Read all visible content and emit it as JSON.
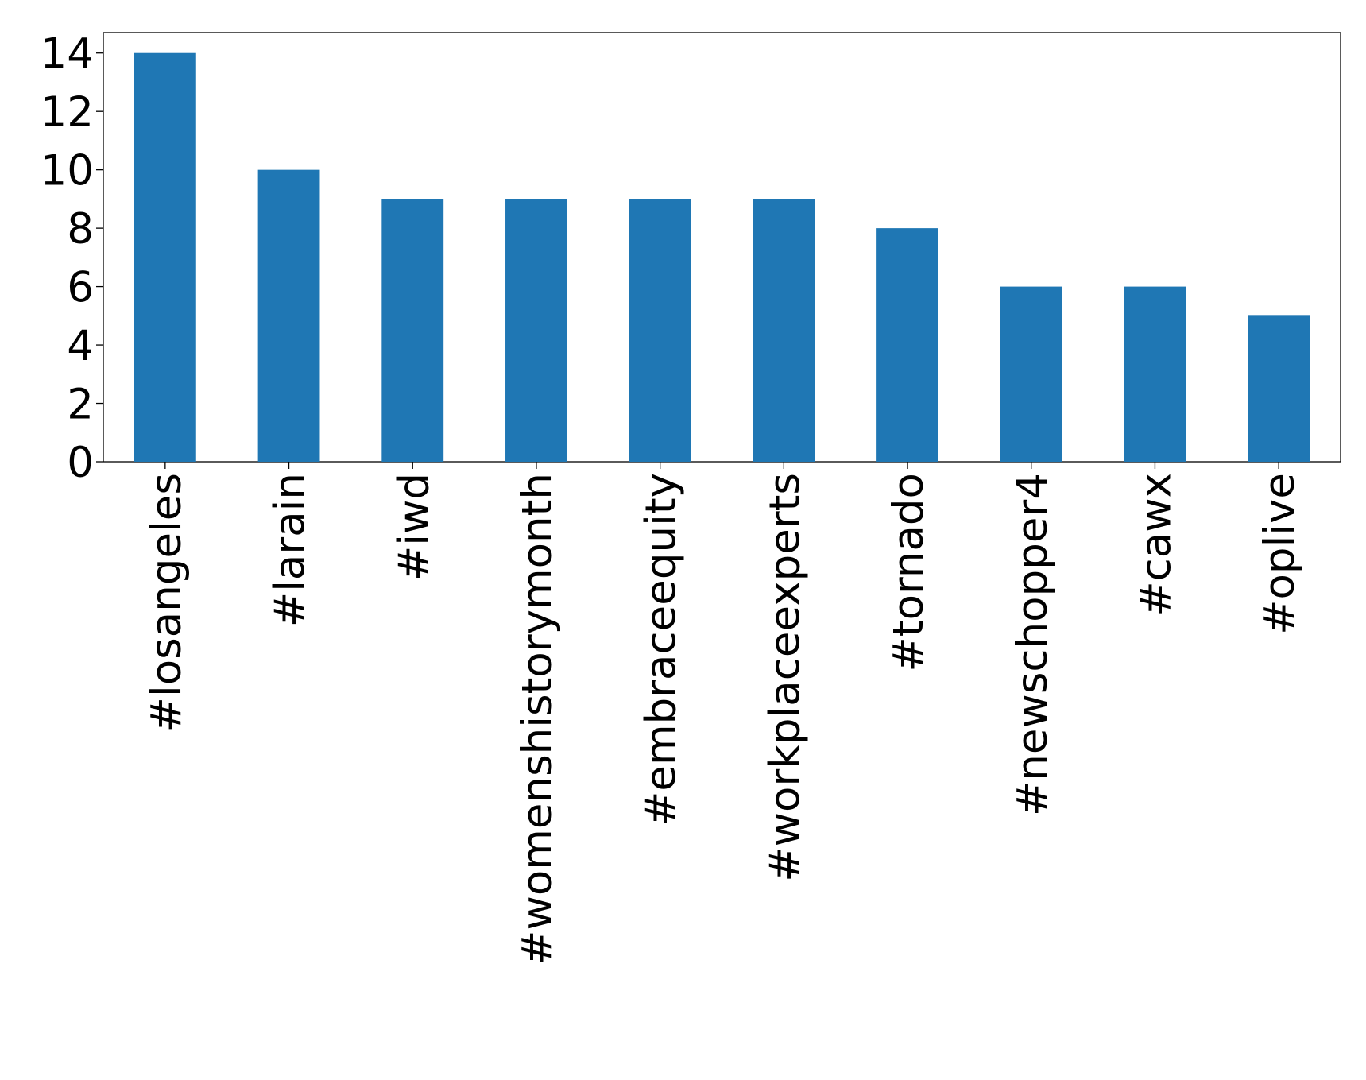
{
  "chart_data": {
    "type": "bar",
    "categories": [
      "#losangeles",
      "#larain",
      "#iwd",
      "#womenshistorymonth",
      "#embraceequity",
      "#workplaceexperts",
      "#tornado",
      "#newschopper4",
      "#cawx",
      "#oplive"
    ],
    "values": [
      14,
      10,
      9,
      9,
      9,
      9,
      8,
      6,
      6,
      5
    ],
    "color": "#1f77b4",
    "ylim": [
      0,
      14.7
    ],
    "yticks": [
      0,
      2,
      4,
      6,
      8,
      10,
      12,
      14
    ],
    "grid": false
  }
}
